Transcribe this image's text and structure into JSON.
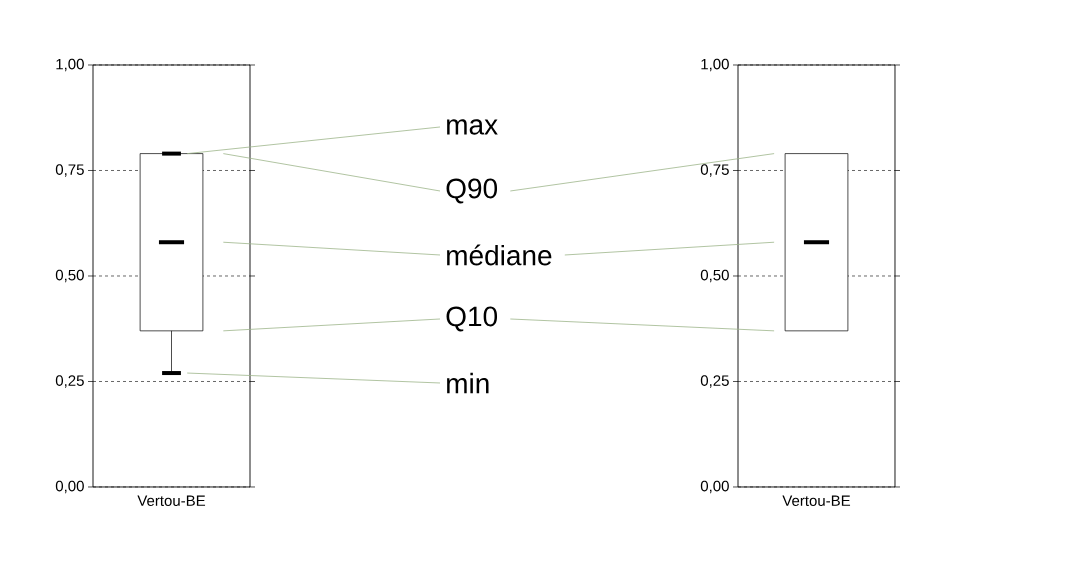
{
  "chart_data": [
    {
      "type": "box",
      "categories": [
        "Vertou-BE"
      ],
      "boxes": [
        {
          "low": 0.27,
          "q1": 0.37,
          "median": 0.58,
          "q3": 0.79,
          "high": 0.79
        }
      ],
      "ylim": [
        0,
        1
      ],
      "yticks": [
        {
          "value": 0,
          "label": "0,00"
        },
        {
          "value": 0.25,
          "label": "0,25"
        },
        {
          "value": 0.5,
          "label": "0,50"
        },
        {
          "value": 0.75,
          "label": "0,75"
        },
        {
          "value": 1,
          "label": "1,00"
        }
      ],
      "grid": "y",
      "annotations": [
        "max",
        "Q90",
        "médiane",
        "Q10",
        "min"
      ]
    },
    {
      "type": "box",
      "categories": [
        "Vertou-BE"
      ],
      "boxes": [
        {
          "q1": 0.37,
          "median": 0.58,
          "q3": 0.79
        }
      ],
      "ylim": [
        0,
        1
      ],
      "yticks": [
        {
          "value": 0,
          "label": "0,00"
        },
        {
          "value": 0.25,
          "label": "0,25"
        },
        {
          "value": 0.5,
          "label": "0,50"
        },
        {
          "value": 0.75,
          "label": "0,75"
        },
        {
          "value": 1,
          "label": "1,00"
        }
      ],
      "grid": "y"
    }
  ]
}
